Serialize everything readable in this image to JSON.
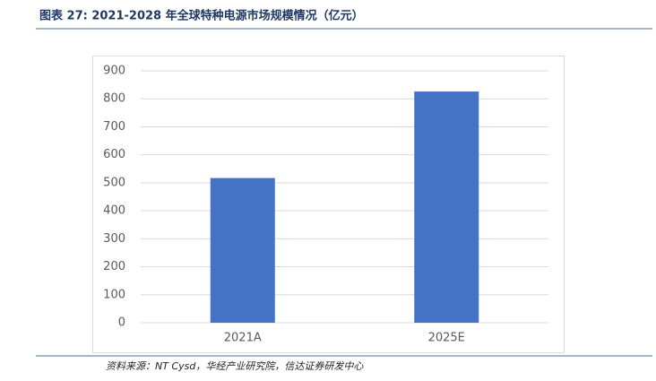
{
  "chart_data": {
    "type": "bar",
    "title": "图表 27: 2021-2028 年全球特种电源市场规模情况（亿元）",
    "source": "资料来源：NT Cysd，华经产业研究院，信达证券研发中心",
    "categories": [
      "2021A",
      "2025E"
    ],
    "values": [
      517,
      826
    ],
    "color": "#4472c4",
    "ylim": [
      0,
      900
    ],
    "yticks": [
      0,
      100,
      200,
      300,
      400,
      500,
      600,
      700,
      800,
      900
    ],
    "grid": true
  }
}
